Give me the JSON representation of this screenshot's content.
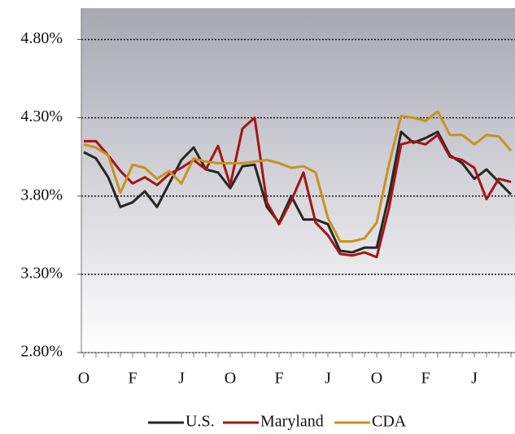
{
  "chart_data": {
    "type": "line",
    "categories": [
      "O",
      null,
      null,
      null,
      "F",
      null,
      null,
      null,
      "J",
      null,
      null,
      null,
      "O",
      null,
      null,
      null,
      "F",
      null,
      null,
      null,
      "J",
      null,
      null,
      null,
      "O",
      null,
      null,
      null,
      "F",
      null,
      null,
      null,
      "J",
      null,
      null,
      null
    ],
    "series": [
      {
        "name": "U.S.",
        "color": "#262626",
        "values": [
          4.08,
          4.04,
          3.92,
          3.73,
          3.76,
          3.83,
          3.73,
          3.88,
          4.03,
          4.11,
          3.97,
          3.95,
          3.85,
          3.99,
          4.0,
          3.73,
          3.63,
          3.8,
          3.65,
          3.65,
          3.62,
          3.45,
          3.44,
          3.47,
          3.47,
          3.8,
          4.21,
          4.14,
          4.17,
          4.21,
          4.06,
          4.01,
          3.91,
          3.97,
          3.89,
          3.81
        ]
      },
      {
        "name": "Maryland",
        "color": "#a31515",
        "values": [
          4.15,
          4.15,
          4.06,
          3.96,
          3.88,
          3.92,
          3.87,
          3.94,
          3.98,
          4.03,
          3.97,
          4.12,
          3.87,
          4.23,
          4.3,
          3.76,
          3.62,
          3.77,
          3.95,
          3.63,
          3.55,
          3.43,
          3.42,
          3.44,
          3.41,
          3.72,
          4.13,
          4.15,
          4.13,
          4.19,
          4.05,
          4.03,
          3.98,
          3.78,
          3.91,
          3.89
        ]
      },
      {
        "name": "CDA",
        "color": "#c8921e",
        "values": [
          4.13,
          4.11,
          4.06,
          3.82,
          4.0,
          3.98,
          3.91,
          3.96,
          3.88,
          4.04,
          4.02,
          4.01,
          4.01,
          4.01,
          4.02,
          4.03,
          4.01,
          3.98,
          3.99,
          3.95,
          3.66,
          3.51,
          3.51,
          3.53,
          3.63,
          4.0,
          4.31,
          4.3,
          4.28,
          4.34,
          4.19,
          4.19,
          4.13,
          4.19,
          4.18,
          4.09
        ]
      }
    ],
    "ylim": [
      2.8,
      5.0
    ],
    "yticks": [
      {
        "value": 2.8,
        "label": "2.80%"
      },
      {
        "value": 3.3,
        "label": "3.30%"
      },
      {
        "value": 3.8,
        "label": "3.80%"
      },
      {
        "value": 4.3,
        "label": "4.30%"
      },
      {
        "value": 4.8,
        "label": "4.80%"
      }
    ],
    "grid": true,
    "legend": "bottom"
  }
}
